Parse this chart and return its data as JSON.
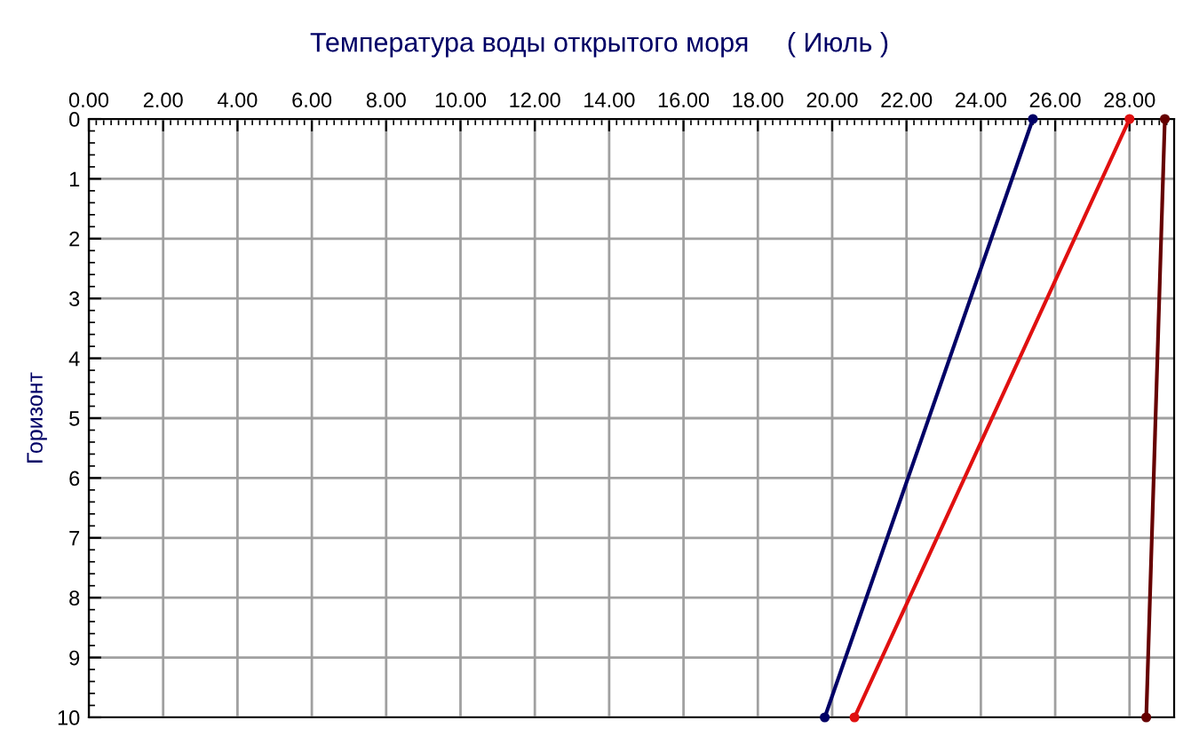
{
  "chart_data": {
    "type": "line",
    "title": "Температура воды открытого моря     ( Июль )",
    "ylabel": "Горизонт",
    "series": [
      {
        "color": "#000066",
        "x": [
          25.4,
          19.8
        ],
        "values": [
          0,
          10
        ]
      },
      {
        "color": "#e01010",
        "x": [
          28.0,
          20.6
        ],
        "values": [
          0,
          10
        ]
      },
      {
        "color": "#660000",
        "x": [
          28.95,
          28.45
        ],
        "values": [
          0,
          10
        ]
      }
    ],
    "xlim": [
      0,
      29.2
    ],
    "xticks": [
      {
        "value": 0,
        "label": "0.00"
      },
      {
        "value": 2,
        "label": "2.00"
      },
      {
        "value": 4,
        "label": "4.00"
      },
      {
        "value": 6,
        "label": "6.00"
      },
      {
        "value": 8,
        "label": "8.00"
      },
      {
        "value": 10,
        "label": "10.00"
      },
      {
        "value": 12,
        "label": "12.00"
      },
      {
        "value": 14,
        "label": "14.00"
      },
      {
        "value": 16,
        "label": "16.00"
      },
      {
        "value": 18,
        "label": "18.00"
      },
      {
        "value": 20,
        "label": "20.00"
      },
      {
        "value": 22,
        "label": "22.00"
      },
      {
        "value": 24,
        "label": "24.00"
      },
      {
        "value": 26,
        "label": "26.00"
      },
      {
        "value": 28,
        "label": "28.00"
      }
    ],
    "ylim": [
      10,
      0
    ],
    "yticks": [
      0,
      1,
      2,
      3,
      4,
      5,
      6,
      7,
      8,
      9,
      10
    ],
    "grid": true,
    "marker": "circle",
    "line_style": "solid",
    "legend": false
  }
}
